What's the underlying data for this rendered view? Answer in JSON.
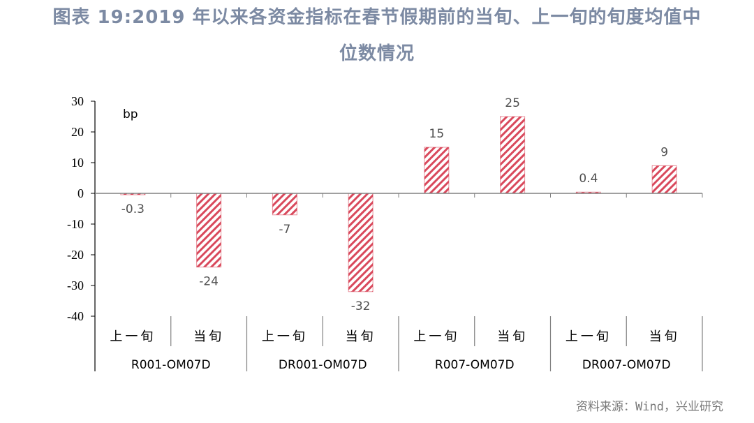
{
  "title": {
    "line1": "图表 19:2019  年以来各资金指标在春节假期前的当旬、上一旬的旬度均值中",
    "line2": "位数情况"
  },
  "source": "资料来源：Wind，兴业研究",
  "colors": {
    "title": "#7c8aa3",
    "bar_stroke": "#d9495c",
    "bar_hatch": "#d9495c",
    "axis": "#808080"
  },
  "chart_data": {
    "type": "bar",
    "title": "2019年以来各资金指标在春节假期前的当旬、上一旬的旬度均值中位数情况",
    "ylabel": "bp",
    "xlabel": "",
    "ylim": [
      -40,
      30
    ],
    "yticks": [
      30,
      20,
      10,
      0,
      -10,
      -20,
      -30,
      -40
    ],
    "grid": false,
    "groups": [
      "R001-OM07D",
      "DR001-OM07D",
      "R007-OM07D",
      "DR007-OM07D"
    ],
    "subcategories": [
      "上一旬",
      "当旬"
    ],
    "categories": [
      "上一旬",
      "当旬",
      "上一旬",
      "当旬",
      "上一旬",
      "当旬",
      "上一旬",
      "当旬"
    ],
    "values": [
      -0.3,
      -24,
      -7,
      -32,
      15,
      25,
      0.4,
      9
    ],
    "data_labels": [
      "-0.3",
      "-24",
      "-7",
      "-32",
      "15",
      "25",
      "0.4",
      "9"
    ],
    "pattern": "diagonal-hatch",
    "legend": null
  }
}
